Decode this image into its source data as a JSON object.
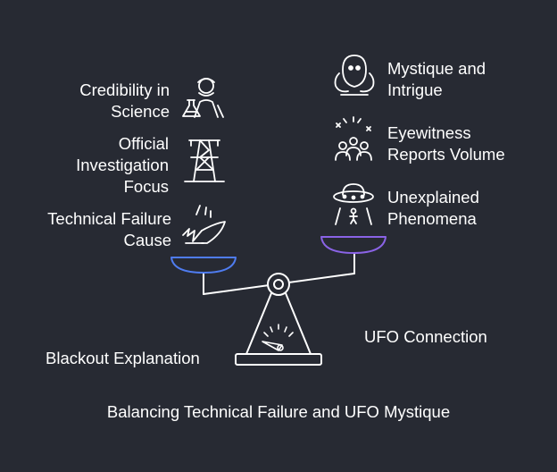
{
  "colors": {
    "background": "#272a33",
    "stroke": "#ffffff",
    "left_pan": "#4f7cf0",
    "right_pan": "#8a63e6"
  },
  "left_side": {
    "items": [
      {
        "line1": "Credibility in",
        "line2": "Science",
        "icon": "scientist-icon"
      },
      {
        "line1": "Official",
        "line2": "Investigation",
        "line3": "Focus",
        "icon": "power-tower-icon"
      },
      {
        "line1": "Technical Failure",
        "line2": "Cause",
        "icon": "broken-sparks-icon"
      }
    ],
    "label": "Blackout Explanation"
  },
  "right_side": {
    "items": [
      {
        "line1": "Mystique and",
        "line2": "Intrigue",
        "icon": "alien-icon"
      },
      {
        "line1": "Eyewitness",
        "line2": "Reports Volume",
        "icon": "witness-group-icon"
      },
      {
        "line1": "Unexplained",
        "line2": "Phenomena",
        "icon": "ufo-abduction-icon"
      }
    ],
    "label": "UFO Connection"
  },
  "caption": "Balancing Technical Failure and UFO Mystique"
}
